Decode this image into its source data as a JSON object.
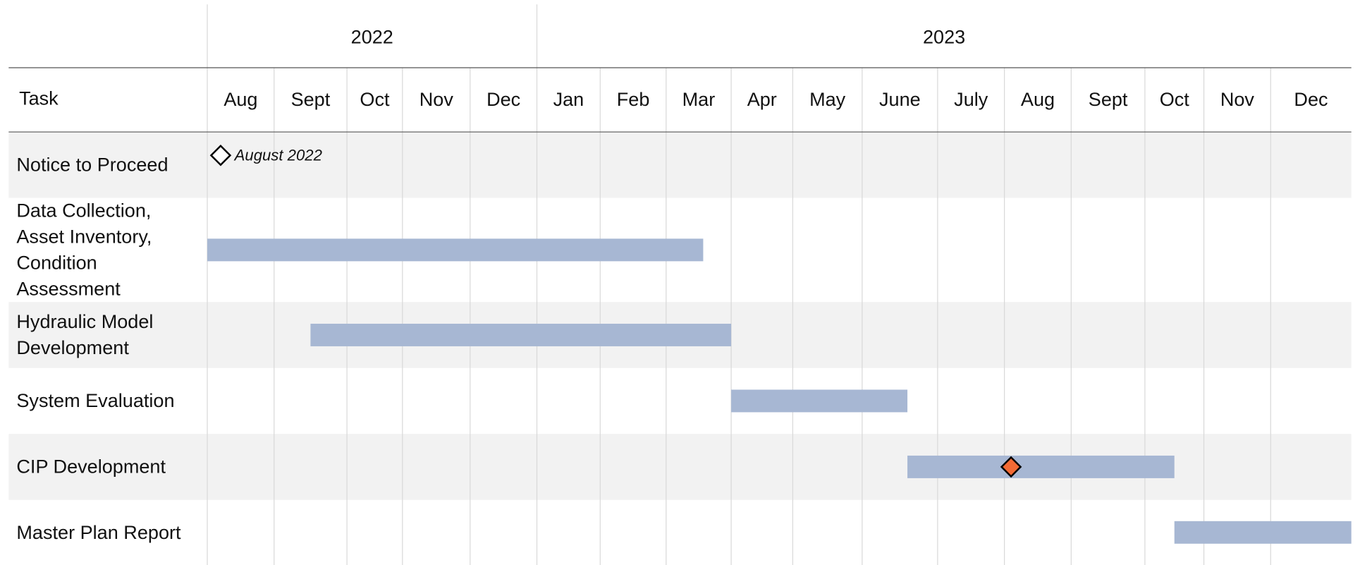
{
  "chart_data": {
    "type": "gantt",
    "header_label": "Task",
    "years": [
      {
        "label": "2022",
        "span": 5
      },
      {
        "label": "2023",
        "span": 12
      }
    ],
    "months": [
      "Aug",
      "Sept",
      "Oct",
      "Nov",
      "Dec",
      "Jan",
      "Feb",
      "Mar",
      "Apr",
      "May",
      "June",
      "July",
      "Aug",
      "Sept",
      "Oct",
      "Nov",
      "Dec"
    ],
    "bar_color": "#a7b7d3",
    "tasks": [
      {
        "name": "Notice to Proceed"
      },
      {
        "name": "Data Collection, Asset Inventory, Condition Assessment",
        "start": 0,
        "end": 7.57
      },
      {
        "name": "Hydraulic Model Development",
        "start": 1.5,
        "end": 8
      },
      {
        "name": "System Evaluation",
        "start": 8,
        "end": 10.6
      },
      {
        "name": "CIP Development",
        "start": 10.6,
        "end": 14.5
      },
      {
        "name": "Master Plan Report",
        "start": 14.5,
        "end": 17
      }
    ],
    "milestones": [
      {
        "task": 0,
        "at": 0.2,
        "label": "August 2022",
        "color": "#ffffff"
      },
      {
        "task": 4,
        "at": 12.1,
        "color": "#f26a35"
      }
    ]
  }
}
